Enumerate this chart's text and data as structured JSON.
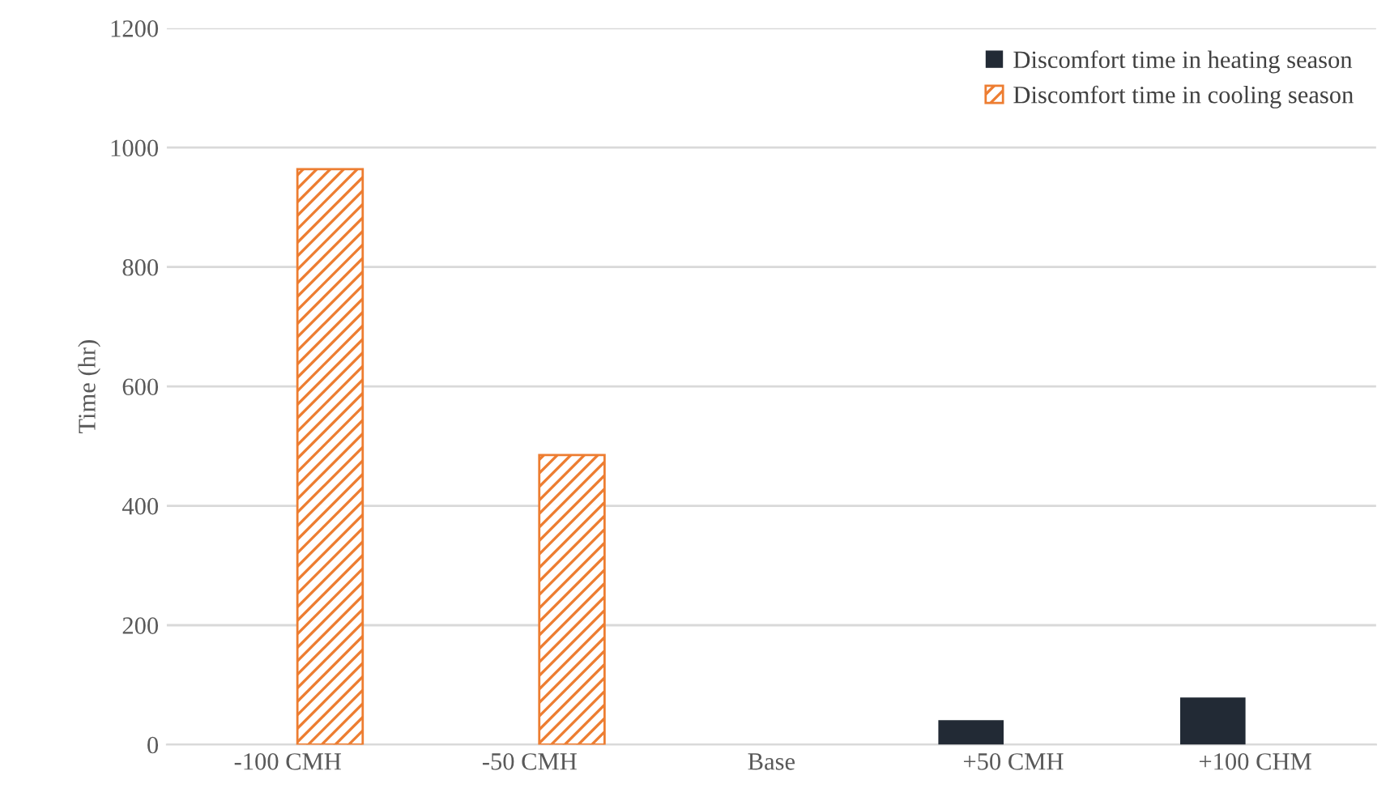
{
  "chart_data": {
    "type": "bar",
    "ylabel": "Time (hr)",
    "categories": [
      "-100 CMH",
      "-50 CMH",
      "Base",
      "+50 CMH",
      "+100 CHM"
    ],
    "series": [
      {
        "name": "Discomfort time in heating season",
        "color": "#222a35",
        "values": [
          null,
          null,
          null,
          41,
          79
        ]
      },
      {
        "name": "Discomfort time in cooling season",
        "color": "#ed7d31",
        "values": [
          964,
          485,
          null,
          null,
          null
        ]
      }
    ],
    "ylim": [
      0,
      1200
    ],
    "yticks": [
      0,
      200,
      400,
      600,
      800,
      1000,
      1200
    ],
    "grid": "y",
    "legend": "top right"
  }
}
